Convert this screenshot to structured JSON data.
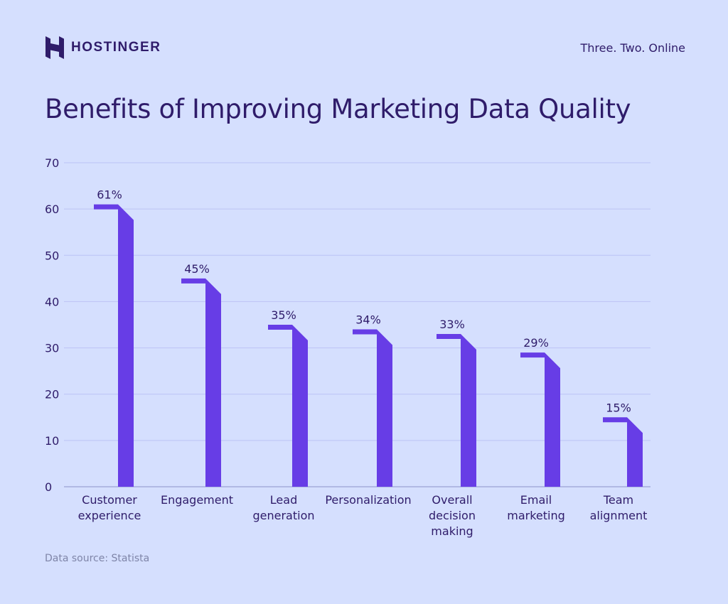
{
  "header": {
    "brand": "HOSTINGER",
    "tagline": "Three. Two. Online"
  },
  "footer": {
    "source": "Data source: Statista"
  },
  "colors": {
    "background": "#d5dffe",
    "bar": "#673de6",
    "text": "#2f1c6a",
    "grid": "#bcc3f5"
  },
  "chart_data": {
    "type": "bar",
    "title": "Benefits of Improving Marketing Data Quality",
    "categories": [
      [
        "Customer",
        "experience"
      ],
      [
        "Engagement"
      ],
      [
        "Lead",
        "generation"
      ],
      [
        "Personalization"
      ],
      [
        "Overall",
        "decision",
        "making"
      ],
      [
        "Email",
        "marketing"
      ],
      [
        "Team",
        "alignment"
      ]
    ],
    "values": [
      61,
      45,
      35,
      34,
      33,
      29,
      15
    ],
    "data_labels": [
      "61%",
      "45%",
      "35%",
      "34%",
      "33%",
      "29%",
      "15%"
    ],
    "ylim": [
      0,
      70
    ],
    "yticks": [
      0,
      10,
      20,
      30,
      40,
      50,
      60,
      70
    ],
    "grid": true,
    "xlabel": "",
    "ylabel": ""
  }
}
